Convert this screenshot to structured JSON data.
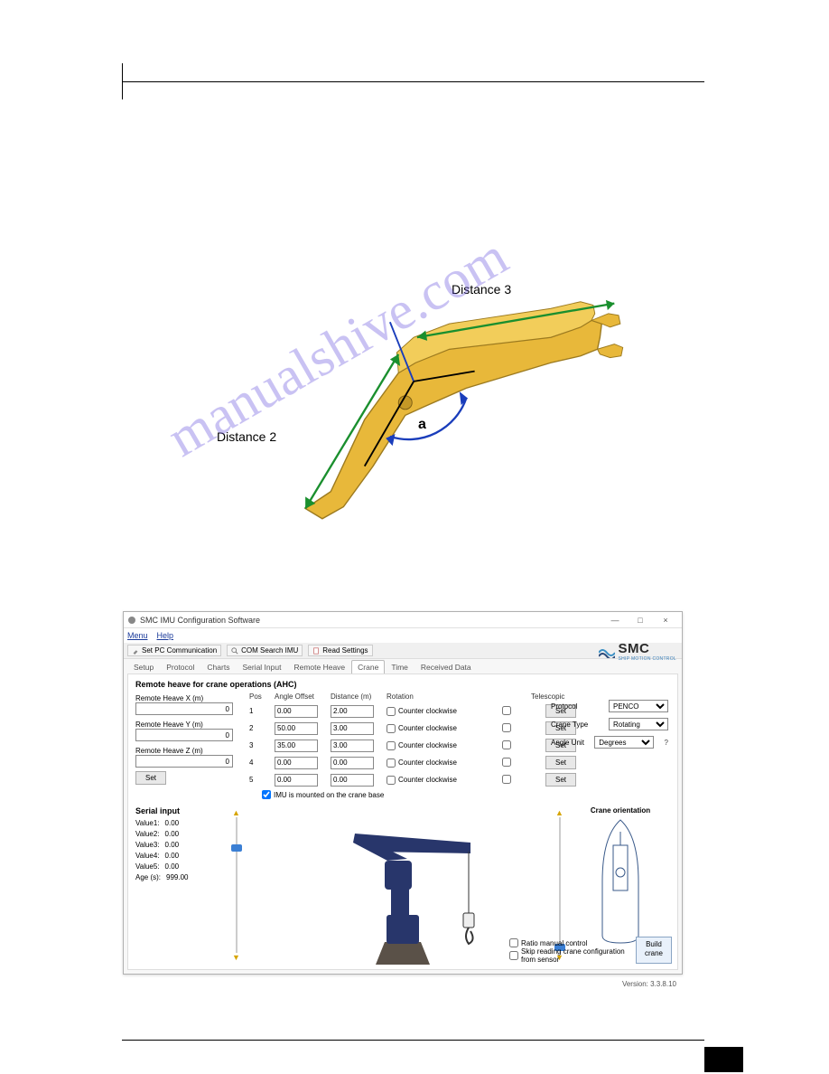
{
  "topfig": {
    "dist2_label": "Distance 2",
    "dist3_label": "Distance 3",
    "angle_label": "a",
    "boom_fill": "#e8b83a",
    "boom_stroke": "#9c7a1f",
    "arrow_color": "#1a8f2e",
    "arc_color": "#1a3dbb"
  },
  "watermark": {
    "text": "manualshive.com"
  },
  "window": {
    "title": "SMC IMU Configuration Software",
    "min": "—",
    "max": "□",
    "close": "×"
  },
  "menubar": {
    "menu": "Menu",
    "help": "Help"
  },
  "toolbar": {
    "setpc": "Set PC Communication",
    "com": "COM Search IMU",
    "read": "Read Settings"
  },
  "logo": {
    "name": "SMC",
    "sub": "SHIP MOTION CONTROL"
  },
  "tabs": [
    "Setup",
    "Protocol",
    "Charts",
    "Serial Input",
    "Remote Heave",
    "Crane",
    "Time",
    "Received Data"
  ],
  "active_tab": "Crane",
  "section_title": "Remote heave for crane operations (AHC)",
  "remote_heave": {
    "x_label": "Remote Heave X (m)",
    "x_val": "0",
    "y_label": "Remote Heave Y (m)",
    "y_val": "0",
    "z_label": "Remote Heave Z (m)",
    "z_val": "0",
    "set": "Set"
  },
  "grid_headers": {
    "pos": "Pos",
    "ang": "Angle Offset",
    "dist": "Distance (m)",
    "rot": "Rotation",
    "tel": "Telescopic"
  },
  "rows": [
    {
      "pos": "1",
      "ang": "0.00",
      "dist": "2.00",
      "ccw": "Counter clockwise",
      "tel": false
    },
    {
      "pos": "2",
      "ang": "50.00",
      "dist": "3.00",
      "ccw": "Counter clockwise",
      "tel": false
    },
    {
      "pos": "3",
      "ang": "35.00",
      "dist": "3.00",
      "ccw": "Counter clockwise",
      "tel": false
    },
    {
      "pos": "4",
      "ang": "0.00",
      "dist": "0.00",
      "ccw": "Counter clockwise",
      "tel": false
    },
    {
      "pos": "5",
      "ang": "0.00",
      "dist": "0.00",
      "ccw": "Counter clockwise",
      "tel": false
    }
  ],
  "set_btn": "Set",
  "imu_chk": "IMU is mounted on the crane base",
  "rprops": {
    "proto_label": "Protocol",
    "proto_val": "PENCO",
    "ctype_label": "Crane Type",
    "ctype_val": "Rotating",
    "aunit_label": "Angle Unit",
    "aunit_val": "Degrees"
  },
  "serial": {
    "title": "Serial input",
    "vals": [
      {
        "k": "Value1:",
        "v": "0.00"
      },
      {
        "k": "Value2:",
        "v": "0.00"
      },
      {
        "k": "Value3:",
        "v": "0.00"
      },
      {
        "k": "Value4:",
        "v": "0.00"
      },
      {
        "k": "Value5:",
        "v": "0.00"
      },
      {
        "k": "Age (s):",
        "v": "999.00"
      }
    ]
  },
  "ship_title": "Crane orientation",
  "footer": {
    "ratio": "Ratio manual control",
    "skip": "Skip reading crane configuration from sensor",
    "build": "Build crane"
  },
  "version": "Version: 3.3.8.10",
  "crane_colors": {
    "boom": "#28366b",
    "base": "#5a5148",
    "hook": "#333"
  },
  "app_bg": "#f7f7f7"
}
